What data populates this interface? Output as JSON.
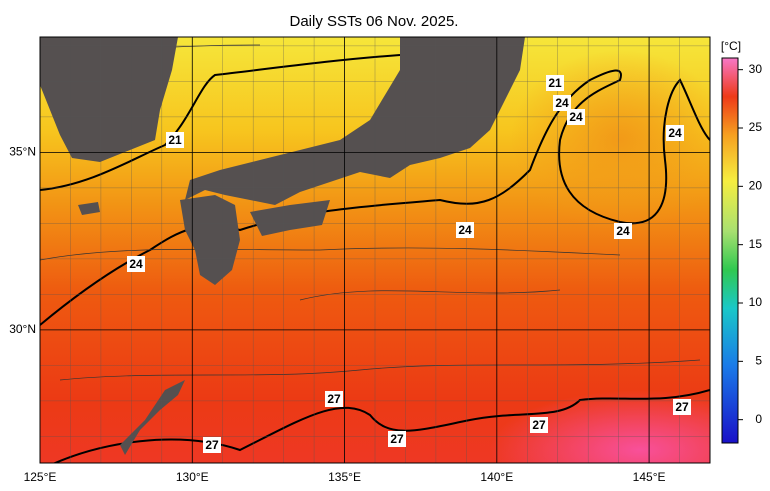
{
  "title": "Daily SSTs 06 Nov. 2025.",
  "map": {
    "lon_range": [
      125,
      147
    ],
    "lat_range": [
      26.25,
      38.25
    ],
    "lon_ticks": [
      {
        "value": 125,
        "label": "125°E"
      },
      {
        "value": 130,
        "label": "130°E"
      },
      {
        "value": 135,
        "label": "135°E"
      },
      {
        "value": 140,
        "label": "140°E"
      },
      {
        "value": 145,
        "label": "145°E"
      }
    ],
    "lat_ticks": [
      {
        "value": 35,
        "label": "35°N"
      },
      {
        "value": 30,
        "label": "30°N"
      }
    ]
  },
  "colorbar": {
    "unit": "[°C]",
    "range": [
      -2,
      31
    ],
    "ticks": [
      0,
      5,
      10,
      15,
      20,
      25,
      30
    ]
  },
  "contour_labels": [
    "21",
    "21",
    "24",
    "24",
    "24",
    "24",
    "24",
    "24",
    "27",
    "27",
    "27",
    "27",
    "27"
  ]
}
